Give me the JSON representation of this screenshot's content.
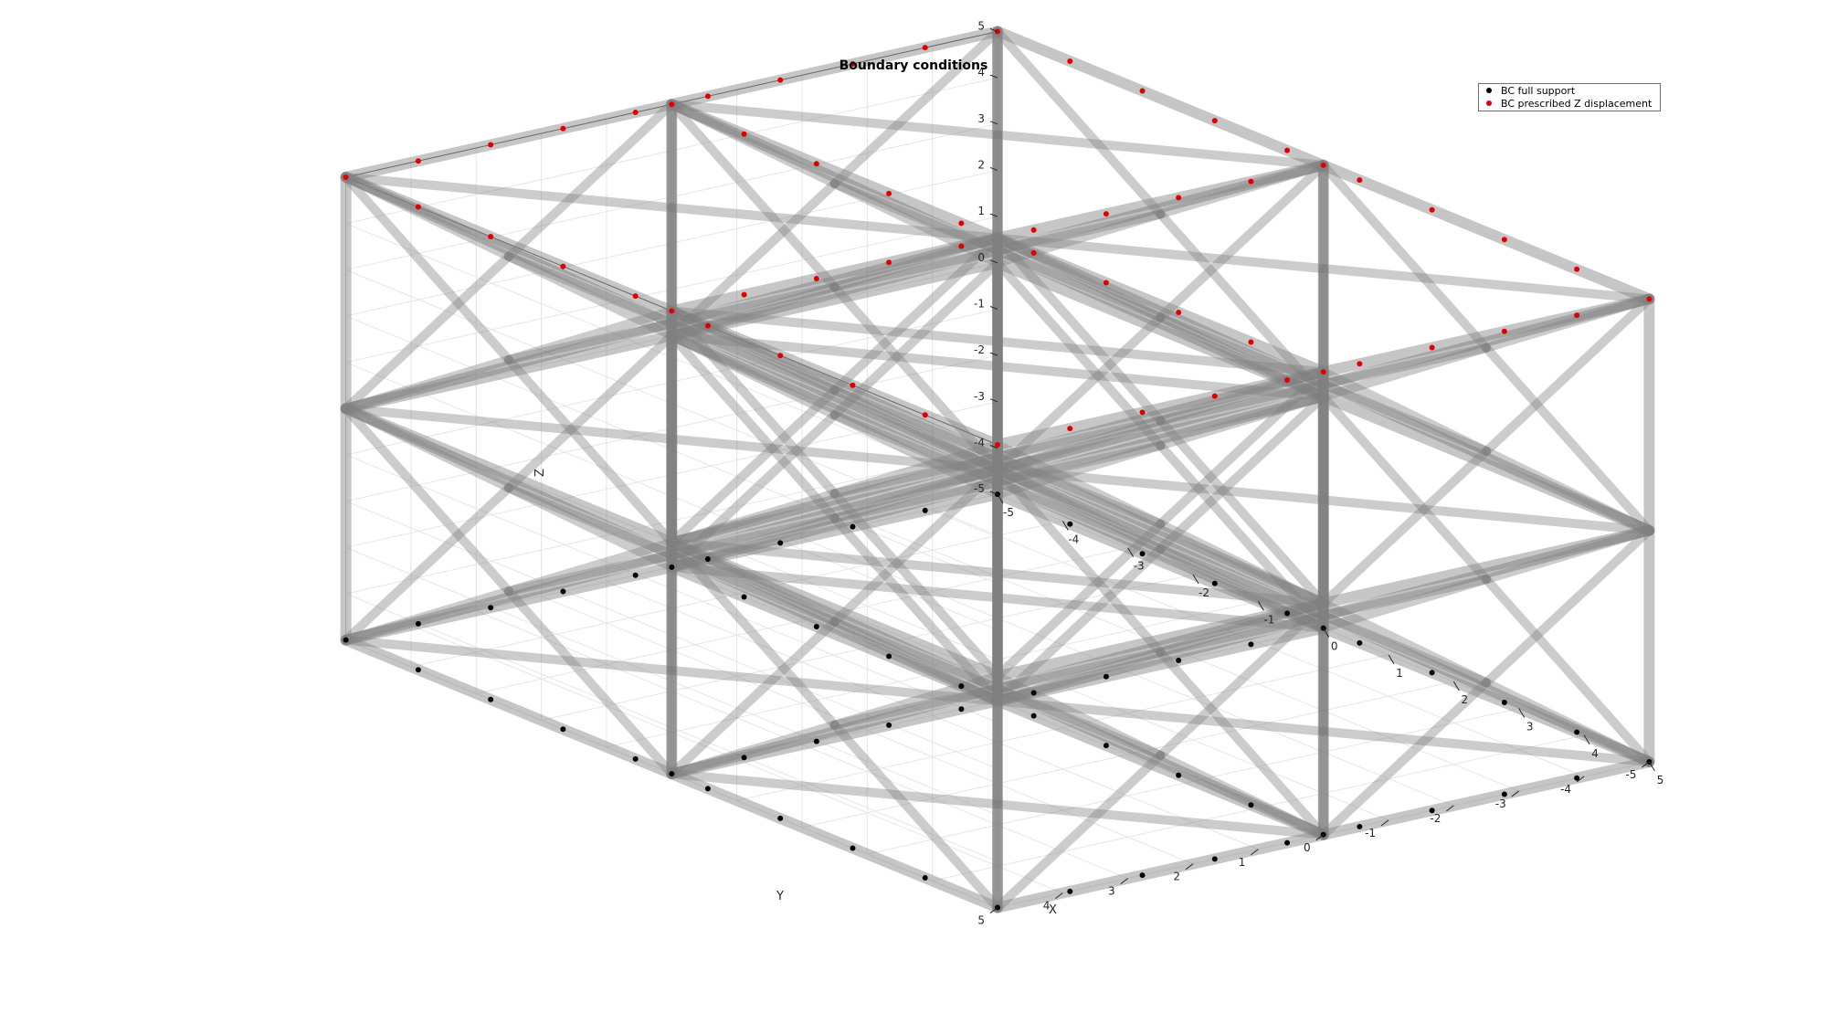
{
  "figure": {
    "title": "Boundary conditions"
  },
  "axes": {
    "x_label": "X",
    "y_label": "Y",
    "z_label": "Z",
    "x_ticks": [
      "-5",
      "-4",
      "-3",
      "-2",
      "-1",
      "0",
      "1",
      "2",
      "3",
      "4",
      "5"
    ],
    "y_ticks": [
      "-5",
      "-4",
      "-3",
      "-2",
      "-1",
      "0",
      "1",
      "2",
      "3",
      "4",
      "5"
    ],
    "z_ticks": [
      "-5",
      "-4",
      "-3",
      "-2",
      "-1",
      "0",
      "1",
      "2",
      "3",
      "4",
      "5"
    ],
    "range": [
      -5,
      5
    ],
    "grid": true,
    "view": "isometric"
  },
  "legend": {
    "placement": "top-right",
    "entries": [
      {
        "label": "BC full support",
        "color": "#000000"
      },
      {
        "label": "BC prescribed Z displacement",
        "color": "#e00000"
      }
    ]
  },
  "lattice": {
    "cells_per_side": 2,
    "strut_color": "#808080",
    "bc_bottom_z": -5,
    "bc_top_z": 5,
    "points_per_edge": 9
  }
}
